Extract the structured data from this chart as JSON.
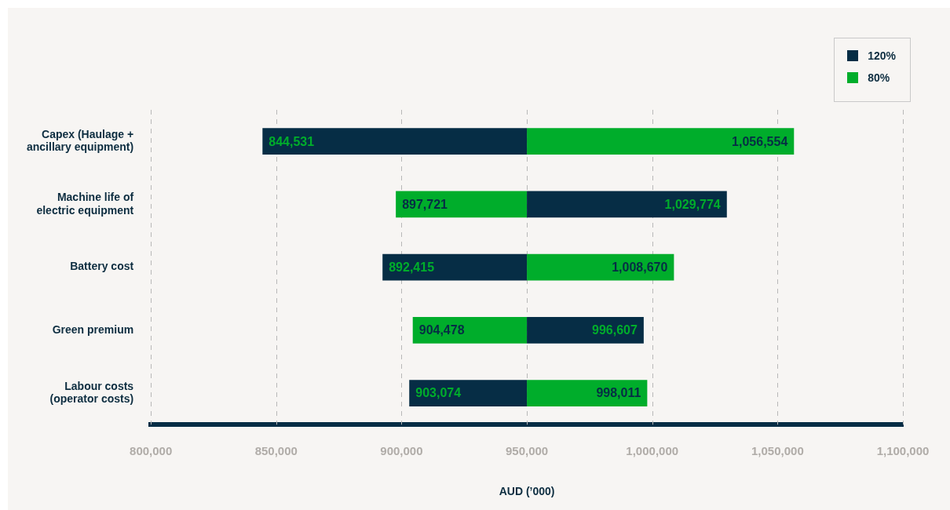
{
  "chart_data": {
    "type": "bar",
    "orientation": "horizontal",
    "xlabel": "AUD (’000)",
    "categories": [
      "Capex (Haulage + ancillary equipment)",
      "Machine life of electric equipment",
      "Battery cost",
      "Green premium",
      "Labour costs (operator costs)"
    ],
    "series": [
      {
        "name": "120%",
        "color": "#062d45",
        "base": [
          950000,
          950000,
          950000,
          950000,
          950000
        ],
        "values": [
          -105469,
          79774,
          -57585,
          46607,
          -46926
        ],
        "value_labels": [
          "844,531",
          "1,029,774",
          "892,415",
          "996,607",
          "903,074"
        ]
      },
      {
        "name": "80%",
        "color": "#00ad2b",
        "base": [
          950000,
          950000,
          950000,
          950000,
          950000
        ],
        "values": [
          106554,
          -52279,
          58670,
          -45522,
          48011
        ],
        "value_labels": [
          "1,056,554",
          "897,721",
          "1,008,670",
          "904,478",
          "998,011"
        ]
      }
    ],
    "xlim": [
      800000,
      1100000
    ],
    "xticks": [
      {
        "value": 800000,
        "label": "800,000"
      },
      {
        "value": 850000,
        "label": "850,000"
      },
      {
        "value": 900000,
        "label": "900,000"
      },
      {
        "value": 950000,
        "label": "950,000"
      },
      {
        "value": 1000000,
        "label": "1,000,000"
      },
      {
        "value": 1050000,
        "label": "1,050,000"
      },
      {
        "value": 1100000,
        "label": "1,100,000"
      }
    ],
    "grid": "x",
    "legend": "top right"
  }
}
